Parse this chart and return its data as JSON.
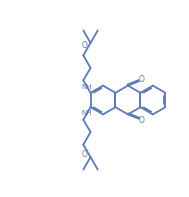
{
  "bg_color": "#ffffff",
  "line_color": "#5c7ab5",
  "line_width": 1.3,
  "figsize": [
    1.89,
    1.97
  ],
  "dpi": 100,
  "xlim": [
    0,
    9.45
  ],
  "ylim": [
    0,
    9.85
  ]
}
